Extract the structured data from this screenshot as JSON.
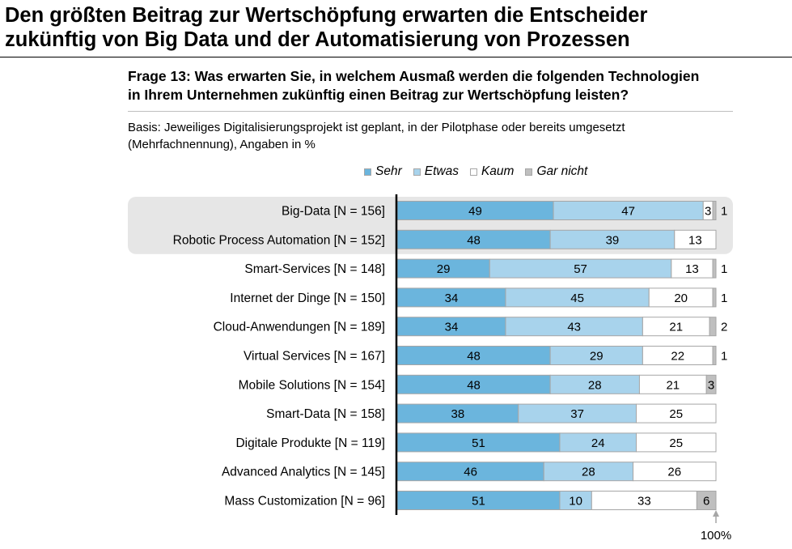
{
  "header": {
    "title_line1": "Den größten Beitrag zur Wertschöpfung erwarten die Entscheider",
    "title_line2": "zukünftig von Big Data und der Automatisierung von Prozessen",
    "question_line1": "Frage 13: Was erwarten Sie, in welchem Ausmaß werden die folgenden Technologien",
    "question_line2": "in Ihrem Unternehmen zukünftig einen Beitrag zur Wertschöpfung leisten?",
    "basis_line1": "Basis: Jeweiliges Digitalisierungsprojekt ist geplant, in der Pilotphase oder bereits umgesetzt",
    "basis_line2": "(Mehrfachnennung), Angaben in %"
  },
  "colors": {
    "sehr": "#6bb5dd",
    "etwas": "#a8d3ec",
    "kaum": "#ffffff",
    "gar_nicht": "#bfbfbf",
    "highlight": "#e6e6e6"
  },
  "chart_data": {
    "type": "bar",
    "orientation": "horizontal",
    "stacked": true,
    "xlim": [
      0,
      100
    ],
    "end_marker_label": "100%",
    "categories": [
      "Big-Data [N = 156]",
      "Robotic Process Automation [N = 152]",
      "Smart-Services [N = 148]",
      "Internet der Dinge [N = 150]",
      "Cloud-Anwendungen [N = 189]",
      "Virtual Services [N = 167]",
      "Mobile Solutions [N = 154]",
      "Smart-Data [N = 158]",
      "Digitale Produkte [N = 119]",
      "Advanced Analytics [N = 145]",
      "Mass Customization [N = 96]"
    ],
    "highlighted": [
      "Big-Data [N = 156]",
      "Robotic Process Automation [N = 152]"
    ],
    "series": [
      {
        "name": "Sehr",
        "values": [
          49,
          48,
          29,
          34,
          34,
          48,
          48,
          38,
          51,
          46,
          51
        ]
      },
      {
        "name": "Etwas",
        "values": [
          47,
          39,
          57,
          45,
          43,
          29,
          28,
          37,
          24,
          28,
          10
        ]
      },
      {
        "name": "Kaum",
        "values": [
          3,
          13,
          13,
          20,
          21,
          22,
          21,
          25,
          25,
          26,
          33
        ]
      },
      {
        "name": "Gar nicht",
        "values": [
          1,
          0,
          1,
          1,
          2,
          1,
          3,
          0,
          0,
          0,
          6
        ]
      }
    ],
    "legend_position": "top"
  }
}
